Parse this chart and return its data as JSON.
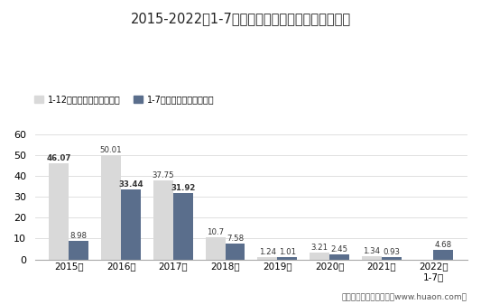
{
  "title": "2015-2022年1-7月郑州商品交易所强麦期货成交量",
  "categories": [
    "2015年",
    "2016年",
    "2017年",
    "2018年",
    "2019年",
    "2020年",
    "2021年",
    "2022年\n1-7月"
  ],
  "annual_values": [
    46.07,
    50.01,
    37.75,
    10.7,
    1.24,
    3.21,
    1.34,
    null
  ],
  "monthly_values": [
    8.98,
    33.44,
    31.92,
    7.58,
    1.01,
    2.45,
    0.93,
    4.68
  ],
  "annual_color": "#d9d9d9",
  "monthly_color": "#5a6e8c",
  "ylim": [
    0,
    60
  ],
  "yticks": [
    0,
    10,
    20,
    30,
    40,
    50,
    60
  ],
  "legend_annual": "1-12月期货成交量（万手）",
  "legend_monthly": "1-7月期货成交量（万手）",
  "footer": "制图：华经产业研究院（www.huaon.com）",
  "bar_width": 0.38,
  "bg_color": "#ffffff",
  "annual_label_bold": [
    true,
    false,
    false,
    false,
    false,
    false,
    false,
    false
  ],
  "monthly_label_bold": [
    false,
    true,
    true,
    false,
    false,
    false,
    false,
    false
  ]
}
